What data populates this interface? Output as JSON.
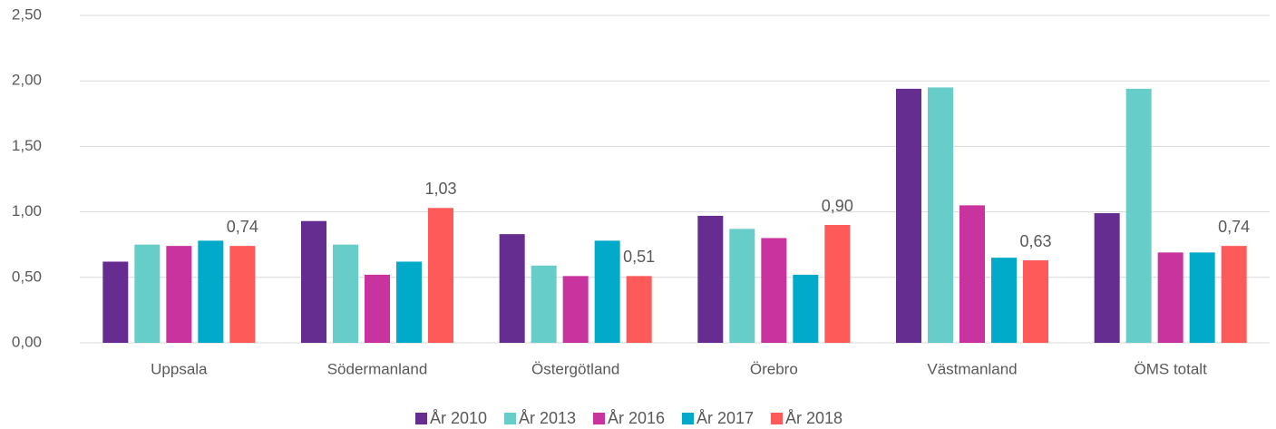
{
  "chart_data": {
    "type": "bar",
    "categories": [
      "Uppsala",
      "Södermanland",
      "Östergötland",
      "Örebro",
      "Västmanland",
      "ÖMS totalt"
    ],
    "series": [
      {
        "name": "År 2010",
        "color": "#662d91",
        "values": [
          0.62,
          0.93,
          0.83,
          0.97,
          1.94,
          0.99
        ]
      },
      {
        "name": "År 2013",
        "color": "#66cdc8",
        "values": [
          0.75,
          0.75,
          0.59,
          0.87,
          1.95,
          1.94
        ]
      },
      {
        "name": "År 2016",
        "color": "#c8339e",
        "values": [
          0.74,
          0.52,
          0.51,
          0.8,
          1.05,
          0.69
        ]
      },
      {
        "name": "År 2017",
        "color": "#00aac8",
        "values": [
          0.78,
          0.62,
          0.78,
          0.52,
          0.65,
          0.69
        ]
      },
      {
        "name": "År 2018",
        "color": "#ff5a5a",
        "values": [
          0.74,
          1.03,
          0.51,
          0.9,
          0.63,
          0.74
        ],
        "value_labels": [
          "0,74",
          "1,03",
          "0,51",
          "0,90",
          "0,63",
          "0,74"
        ]
      }
    ],
    "ylim": [
      0,
      2.5
    ],
    "yticks": [
      {
        "value": 0,
        "label": "0,00"
      },
      {
        "value": 0.5,
        "label": "0,50"
      },
      {
        "value": 1,
        "label": "1,00"
      },
      {
        "value": 1.5,
        "label": "1,50"
      },
      {
        "value": 2,
        "label": "2,00"
      },
      {
        "value": 2.5,
        "label": "2,50"
      }
    ],
    "grid": true,
    "legend": "bottom"
  }
}
